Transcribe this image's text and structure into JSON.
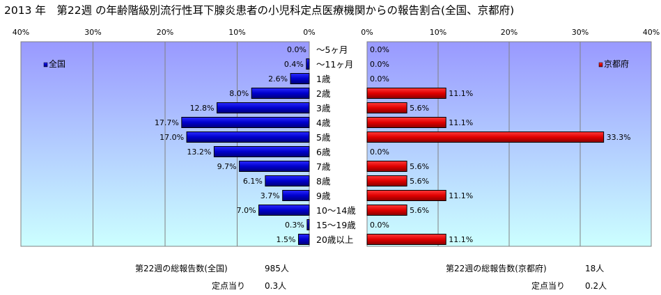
{
  "title": "2013 年　第22週 の年齢階級別流行性耳下腺炎患者の小児科定点医療機関からの報告割合(全国、京都府)",
  "colors": {
    "national_bar": "#0000CC",
    "kyoto_bar": "#E60000",
    "plot_gradient_top": "#9999FF",
    "plot_gradient_bottom": "#CCFFFF",
    "gridline": "#808080"
  },
  "chart_data": [
    {
      "type": "bar",
      "orientation": "horizontal",
      "direction": "right-to-left",
      "legend": "全国",
      "legend_position": "top-left",
      "grid": true,
      "xlim": [
        0,
        40
      ],
      "x_ticks": [
        "40%",
        "30%",
        "20%",
        "10%",
        "0%"
      ],
      "x_tick_values": [
        40,
        30,
        20,
        10,
        0
      ],
      "categories": [
        "～5ヶ月",
        "～11ヶ月",
        "1歳",
        "2歳",
        "3歳",
        "4歳",
        "5歳",
        "6歳",
        "7歳",
        "8歳",
        "9歳",
        "10～14歳",
        "15～19歳",
        "20歳以上"
      ],
      "values": [
        0.0,
        0.4,
        2.6,
        8.0,
        12.8,
        17.7,
        17.0,
        13.2,
        9.7,
        6.1,
        3.7,
        7.0,
        0.3,
        1.5
      ],
      "value_labels": [
        "0.0%",
        "0.4%",
        "2.6%",
        "8.0%",
        "12.8%",
        "17.7%",
        "17.0%",
        "13.2%",
        "9.7%",
        "6.1%",
        "3.7%",
        "7.0%",
        "0.3%",
        "1.5%"
      ]
    },
    {
      "type": "bar",
      "orientation": "horizontal",
      "direction": "left-to-right",
      "legend": "京都府",
      "legend_position": "top-right",
      "grid": true,
      "xlim": [
        0,
        40
      ],
      "x_ticks": [
        "0%",
        "10%",
        "20%",
        "30%",
        "40%"
      ],
      "x_tick_values": [
        0,
        10,
        20,
        30,
        40
      ],
      "categories": [
        "～5ヶ月",
        "～11ヶ月",
        "1歳",
        "2歳",
        "3歳",
        "4歳",
        "5歳",
        "6歳",
        "7歳",
        "8歳",
        "9歳",
        "10～14歳",
        "15～19歳",
        "20歳以上"
      ],
      "values": [
        0.0,
        0.0,
        0.0,
        11.1,
        5.6,
        11.1,
        33.3,
        0.0,
        5.6,
        5.6,
        11.1,
        5.6,
        0.0,
        11.1
      ],
      "value_labels": [
        "0.0%",
        "0.0%",
        "0.0%",
        "11.1%",
        "5.6%",
        "11.1%",
        "33.3%",
        "0.0%",
        "5.6%",
        "5.6%",
        "11.1%",
        "5.6%",
        "0.0%",
        "11.1%"
      ]
    }
  ],
  "footer": {
    "national_total_label": "第22週の総報告数(全国)",
    "national_total_value": "985人",
    "national_per_label": "定点当り",
    "national_per_value": "0.3人",
    "kyoto_total_label": "第22週の総報告数(京都府)",
    "kyoto_total_value": "18人",
    "kyoto_per_label": "定点当り",
    "kyoto_per_value": "0.2人"
  }
}
